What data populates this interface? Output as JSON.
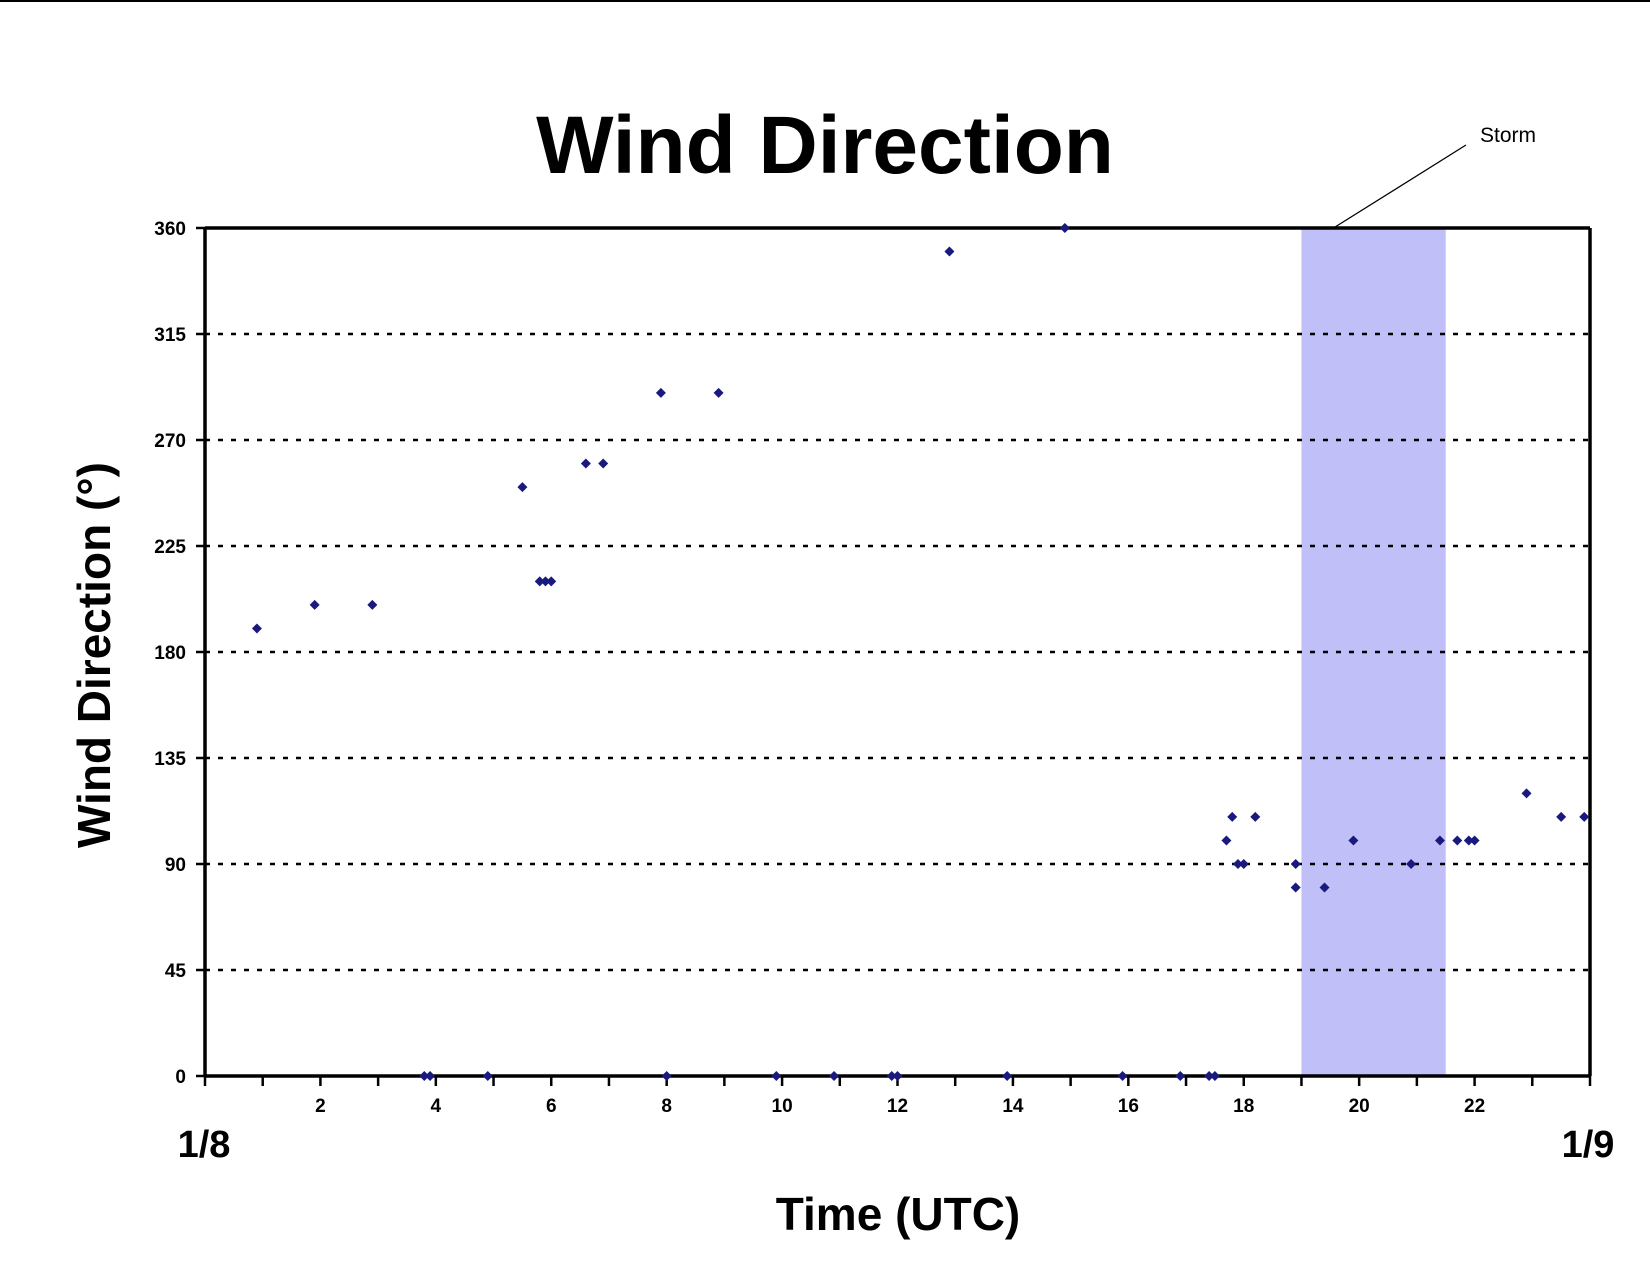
{
  "chart_data": {
    "type": "scatter",
    "title": "Wind Direction",
    "xlabel": "Time (UTC)",
    "ylabel": "Wind Direction (°)",
    "xlim": [
      0,
      24
    ],
    "ylim": [
      0,
      360
    ],
    "xticks": [
      2,
      4,
      6,
      8,
      10,
      12,
      14,
      16,
      18,
      20,
      22
    ],
    "yticks": [
      0,
      45,
      90,
      135,
      180,
      225,
      270,
      315,
      360
    ],
    "date_labels": {
      "start": "1/8",
      "end": "1/9"
    },
    "grid": true,
    "legend": "none",
    "annotation": {
      "text": "Storm",
      "x_range": [
        19.0,
        21.5
      ]
    },
    "colors": {
      "marker": "#1a1a7e",
      "storm_band": "#c0bff8",
      "grid": "#000000"
    },
    "series": [
      {
        "points": [
          [
            0.9,
            190
          ],
          [
            1.9,
            200
          ],
          [
            2.9,
            200
          ],
          [
            3.8,
            0
          ],
          [
            3.9,
            0
          ],
          [
            4.9,
            0
          ],
          [
            5.5,
            250
          ],
          [
            5.8,
            210
          ],
          [
            5.9,
            210
          ],
          [
            6.0,
            210
          ],
          [
            6.6,
            260
          ],
          [
            6.9,
            260
          ],
          [
            7.9,
            290
          ],
          [
            8.0,
            0
          ],
          [
            8.9,
            290
          ],
          [
            9.9,
            0
          ],
          [
            10.9,
            0
          ],
          [
            11.9,
            0
          ],
          [
            12.0,
            0
          ],
          [
            12.9,
            350
          ],
          [
            13.9,
            0
          ],
          [
            14.9,
            360
          ],
          [
            15.9,
            0
          ],
          [
            16.9,
            0
          ],
          [
            17.4,
            0
          ],
          [
            17.5,
            0
          ],
          [
            17.7,
            100
          ],
          [
            17.8,
            110
          ],
          [
            17.9,
            90
          ],
          [
            18.0,
            90
          ],
          [
            18.2,
            110
          ],
          [
            18.9,
            90
          ],
          [
            18.9,
            80
          ],
          [
            19.4,
            80
          ],
          [
            19.9,
            100
          ],
          [
            20.9,
            90
          ],
          [
            21.4,
            100
          ],
          [
            21.7,
            100
          ],
          [
            21.9,
            100
          ],
          [
            22.0,
            100
          ],
          [
            22.9,
            120
          ],
          [
            23.5,
            110
          ],
          [
            23.9,
            110
          ]
        ]
      }
    ]
  }
}
